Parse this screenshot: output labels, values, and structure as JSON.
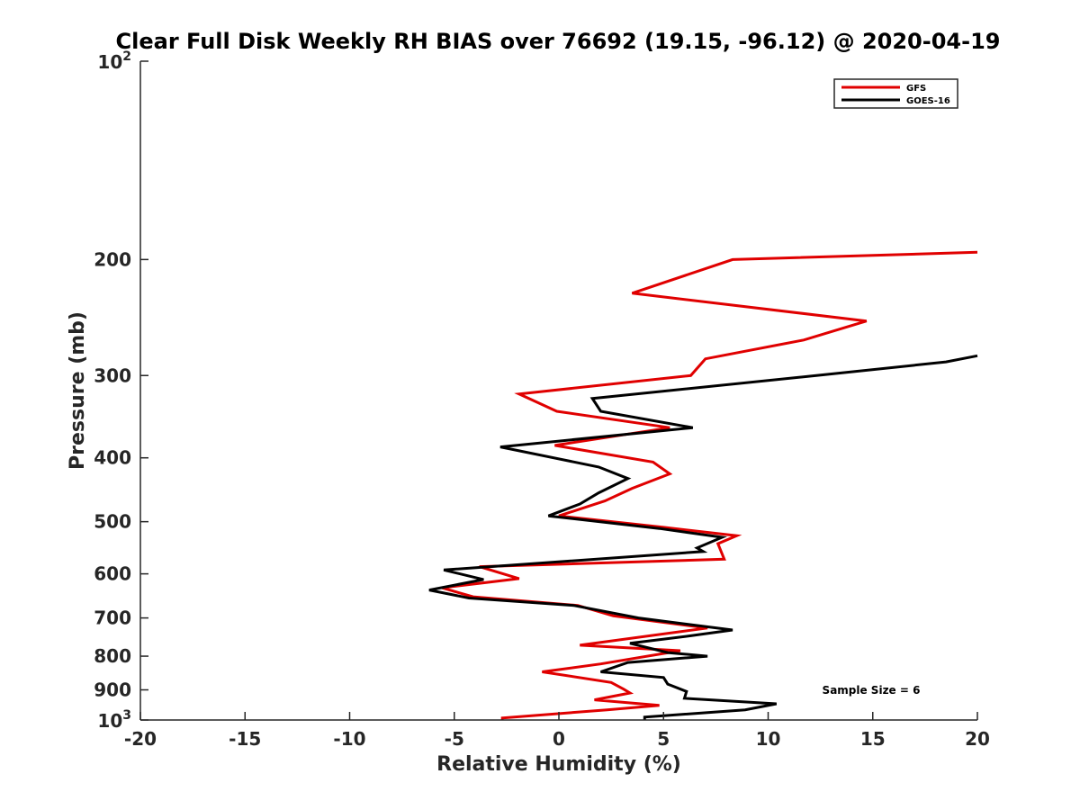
{
  "chart_data": {
    "type": "line",
    "title": "Clear Full Disk Weekly RH BIAS over 76692 (19.15, -96.12) @ 2020-04-19",
    "xlabel": "Relative Humidity (%)",
    "ylabel": "Pressure (mb)",
    "xlim": [
      -20,
      20
    ],
    "ylim": [
      100,
      1000
    ],
    "yscale": "log",
    "y_reversed": true,
    "x_ticks": [
      "-20",
      "-15",
      "-10",
      "-5",
      "0",
      "5",
      "10",
      "15",
      "20"
    ],
    "y_ticks": [
      {
        "value": 200,
        "label": "200"
      },
      {
        "value": 300,
        "label": "300"
      },
      {
        "value": 400,
        "label": "400"
      },
      {
        "value": 500,
        "label": "500"
      },
      {
        "value": 600,
        "label": "600"
      },
      {
        "value": 700,
        "label": "700"
      },
      {
        "value": 800,
        "label": "800"
      },
      {
        "value": 900,
        "label": "900"
      }
    ],
    "y_limit_labels": [
      {
        "value": 100,
        "base": "10",
        "exp": "2"
      },
      {
        "value": 1000,
        "base": "10",
        "exp": "3"
      }
    ],
    "legend_location": "top-right",
    "series": [
      {
        "name": "GFS",
        "color": "#e00000",
        "points": [
          [
            20.0,
            195
          ],
          [
            8.3,
            200
          ],
          [
            3.5,
            225
          ],
          [
            14.7,
            248
          ],
          [
            11.7,
            265
          ],
          [
            7.0,
            283
          ],
          [
            6.3,
            300
          ],
          [
            -1.9,
            320
          ],
          [
            -0.1,
            340
          ],
          [
            5.3,
            360
          ],
          [
            -0.2,
            383
          ],
          [
            4.5,
            406
          ],
          [
            5.3,
            423
          ],
          [
            3.5,
            445
          ],
          [
            2.2,
            465
          ],
          [
            0.0,
            490
          ],
          [
            5.0,
            510
          ],
          [
            8.5,
            525
          ],
          [
            7.6,
            540
          ],
          [
            7.9,
            570
          ],
          [
            -3.8,
            585
          ],
          [
            -1.9,
            610
          ],
          [
            -5.6,
            630
          ],
          [
            -4.1,
            650
          ],
          [
            0.9,
            670
          ],
          [
            2.6,
            695
          ],
          [
            7.1,
            725
          ],
          [
            1.0,
            770
          ],
          [
            5.8,
            785
          ],
          [
            2.0,
            822
          ],
          [
            -0.8,
            845
          ],
          [
            2.5,
            877
          ],
          [
            3.1,
            898
          ],
          [
            3.4,
            910
          ],
          [
            1.7,
            932
          ],
          [
            4.8,
            950
          ],
          [
            2.3,
            965
          ],
          [
            -2.7,
            993
          ],
          [
            -2.7,
            1000
          ]
        ]
      },
      {
        "name": "GOES-16",
        "color": "#000000",
        "points": [
          [
            20.0,
            280
          ],
          [
            18.5,
            286
          ],
          [
            12.3,
            300
          ],
          [
            1.6,
            325
          ],
          [
            2.0,
            340
          ],
          [
            6.4,
            360
          ],
          [
            -2.8,
            385
          ],
          [
            1.9,
            413
          ],
          [
            3.3,
            430
          ],
          [
            1.9,
            452
          ],
          [
            1.0,
            470
          ],
          [
            -0.5,
            490
          ],
          [
            4.8,
            512
          ],
          [
            7.8,
            528
          ],
          [
            6.6,
            548
          ],
          [
            6.9,
            555
          ],
          [
            -5.5,
            592
          ],
          [
            -3.6,
            612
          ],
          [
            -6.2,
            635
          ],
          [
            -4.3,
            653
          ],
          [
            0.7,
            670
          ],
          [
            3.8,
            700
          ],
          [
            8.3,
            730
          ],
          [
            6.3,
            745
          ],
          [
            3.4,
            765
          ],
          [
            5.2,
            790
          ],
          [
            7.1,
            800
          ],
          [
            3.3,
            818
          ],
          [
            2.0,
            845
          ],
          [
            5.0,
            862
          ],
          [
            5.2,
            882
          ],
          [
            6.1,
            905
          ],
          [
            6.0,
            927
          ],
          [
            10.4,
            945
          ],
          [
            8.9,
            965
          ],
          [
            4.1,
            990
          ],
          [
            4.1,
            1000
          ]
        ]
      }
    ],
    "annotations": [
      {
        "text": "Sample Size = 6",
        "position": "bottom-right"
      }
    ]
  }
}
